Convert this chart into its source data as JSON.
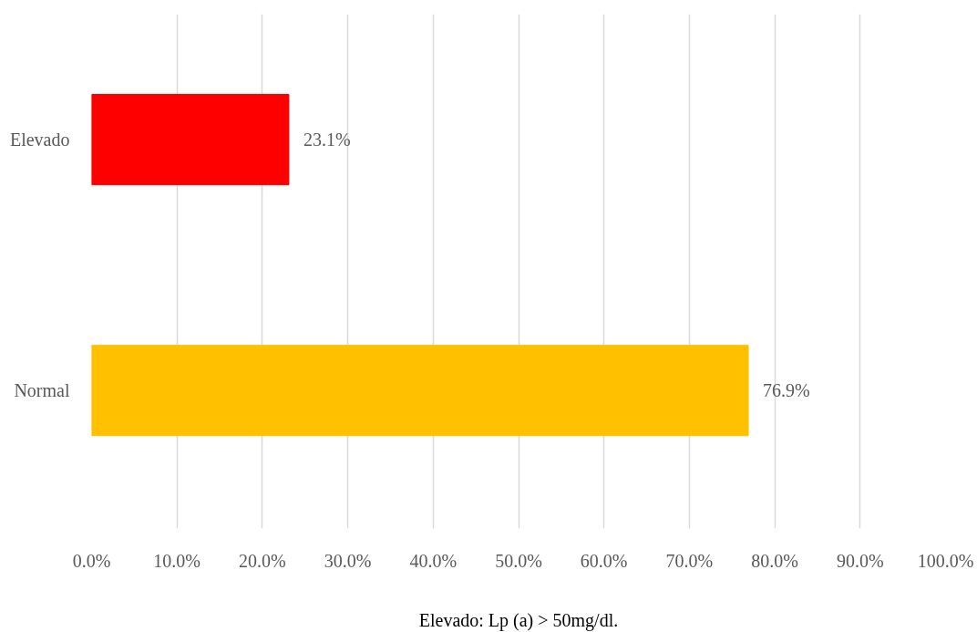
{
  "chart_data": {
    "type": "bar",
    "orientation": "horizontal",
    "xlabel": "Elevado: Lp (a) > 50mg/dl.",
    "categories": [
      "Elevado",
      "Normal"
    ],
    "values": [
      23.1,
      76.9
    ],
    "colors": [
      "#ff0000",
      "#ffc000"
    ],
    "value_labels": [
      "23.1%",
      "76.9%"
    ],
    "xlim": [
      0,
      100
    ],
    "xticks": [
      {
        "value": 0,
        "label": "0.0%"
      },
      {
        "value": 10,
        "label": "10.0%"
      },
      {
        "value": 20,
        "label": "20.0%"
      },
      {
        "value": 30,
        "label": "30.0%"
      },
      {
        "value": 40,
        "label": "40.0%"
      },
      {
        "value": 50,
        "label": "50.0%"
      },
      {
        "value": 60,
        "label": "60.0%"
      },
      {
        "value": 70,
        "label": "70.0%"
      },
      {
        "value": 80,
        "label": "80.0%"
      },
      {
        "value": 90,
        "label": "90.0%"
      },
      {
        "value": 100,
        "label": "100.0%"
      }
    ],
    "grid": "x"
  }
}
